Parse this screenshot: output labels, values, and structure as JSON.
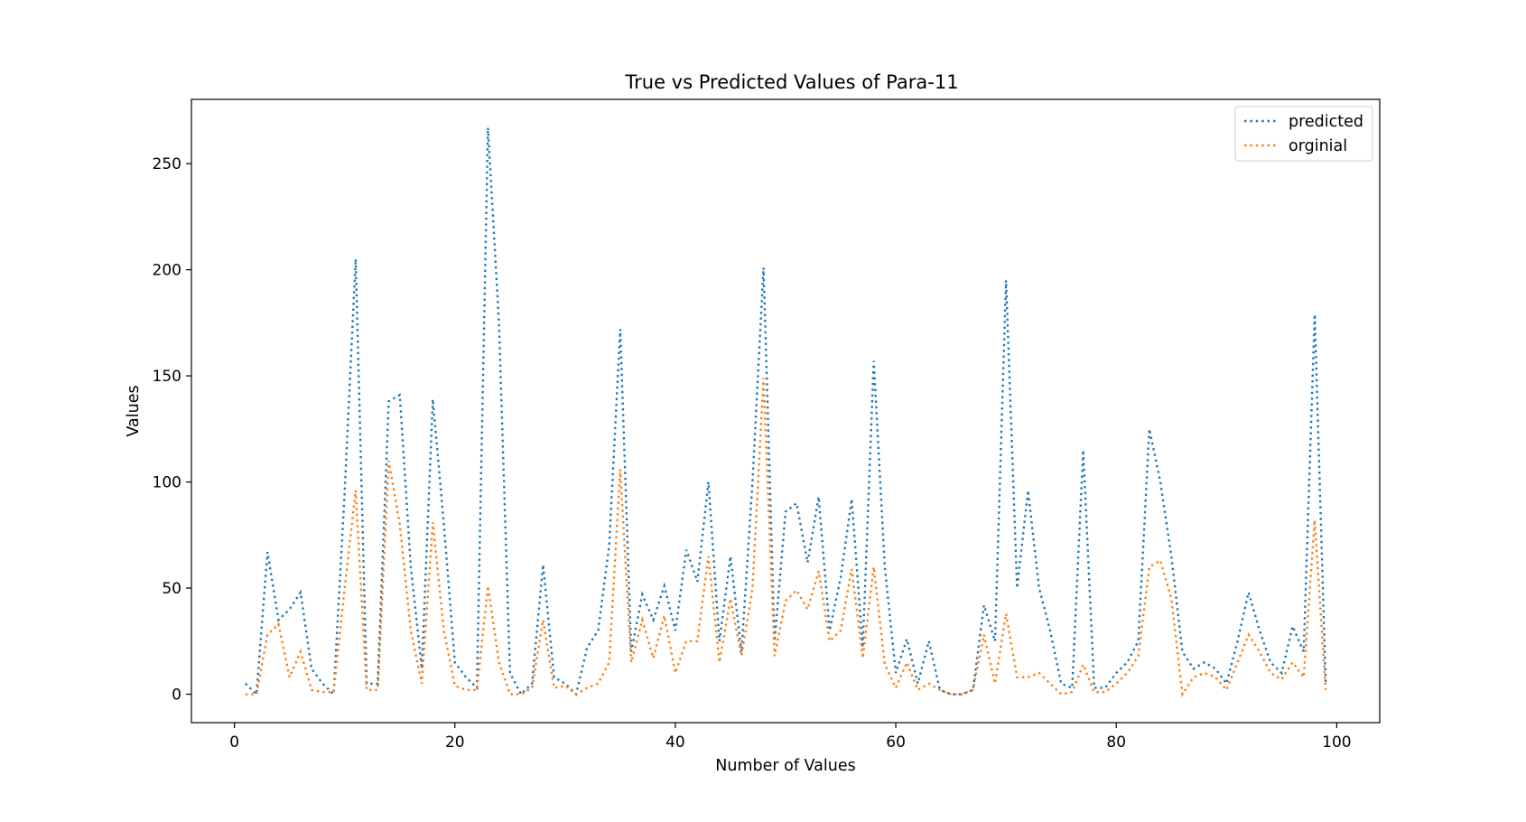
{
  "chart_data": {
    "type": "line",
    "title": "True vs Predicted Values of Para-11",
    "xlabel": "Number of Values",
    "ylabel": "Values",
    "xlim": [
      -3.9,
      103.9
    ],
    "ylim": [
      -13.4,
      280.3
    ],
    "xticks": [
      0,
      20,
      40,
      60,
      80,
      100
    ],
    "yticks": [
      0,
      50,
      100,
      150,
      200,
      250
    ],
    "grid": false,
    "legend_position": "top-right",
    "x": [
      1,
      2,
      3,
      4,
      5,
      6,
      7,
      8,
      9,
      10,
      11,
      12,
      13,
      14,
      15,
      16,
      17,
      18,
      19,
      20,
      21,
      22,
      23,
      24,
      25,
      26,
      27,
      28,
      29,
      30,
      31,
      32,
      33,
      34,
      35,
      36,
      37,
      38,
      39,
      40,
      41,
      42,
      43,
      44,
      45,
      46,
      47,
      48,
      49,
      50,
      51,
      52,
      53,
      54,
      55,
      56,
      57,
      58,
      59,
      60,
      61,
      62,
      63,
      64,
      65,
      66,
      67,
      68,
      69,
      70,
      71,
      72,
      73,
      74,
      75,
      76,
      77,
      78,
      79,
      80,
      81,
      82,
      83,
      84,
      85,
      86,
      87,
      88,
      89,
      90,
      91,
      92,
      93,
      94,
      95,
      96,
      97,
      98,
      99
    ],
    "series": [
      {
        "name": "predicted",
        "color": "#1f77b4",
        "line_style": "dotted",
        "values": [
          5,
          0,
          67,
          35,
          40,
          48,
          12,
          5,
          0,
          95,
          205,
          5,
          5,
          138,
          141,
          60,
          12,
          139,
          80,
          15,
          8,
          3,
          267,
          175,
          10,
          0,
          5,
          61,
          8,
          5,
          0,
          22,
          30,
          70,
          172,
          20,
          47,
          35,
          51,
          30,
          68,
          53,
          100,
          25,
          65,
          20,
          100,
          201,
          25,
          86,
          90,
          62,
          93,
          30,
          55,
          92,
          22,
          157,
          60,
          10,
          26,
          5,
          25,
          2,
          0,
          0,
          2,
          42,
          25,
          195,
          50,
          96,
          50,
          30,
          5,
          3,
          115,
          3,
          3,
          10,
          15,
          25,
          125,
          100,
          65,
          20,
          12,
          15,
          12,
          5,
          25,
          48,
          30,
          15,
          10,
          32,
          20,
          179,
          5
        ]
      },
      {
        "name": "orginial",
        "color": "#ff7f0e",
        "line_style": "dotted",
        "values": [
          0,
          0,
          28,
          33,
          8,
          20,
          2,
          1,
          1,
          50,
          96,
          2,
          2,
          110,
          80,
          30,
          5,
          81,
          30,
          4,
          2,
          2,
          51,
          15,
          0,
          0,
          3,
          35,
          3,
          4,
          0,
          3,
          5,
          15,
          106,
          15,
          35,
          17,
          37,
          10,
          25,
          25,
          65,
          15,
          45,
          18,
          50,
          149,
          18,
          44,
          49,
          40,
          58,
          25,
          30,
          59,
          17,
          60,
          14,
          3,
          15,
          2,
          5,
          2,
          0,
          0,
          2,
          28,
          5,
          38,
          8,
          8,
          10,
          5,
          0,
          1,
          14,
          1,
          1,
          5,
          10,
          18,
          60,
          63,
          45,
          0,
          8,
          10,
          8,
          2,
          15,
          28,
          20,
          10,
          7,
          15,
          8,
          82,
          2
        ]
      }
    ]
  }
}
